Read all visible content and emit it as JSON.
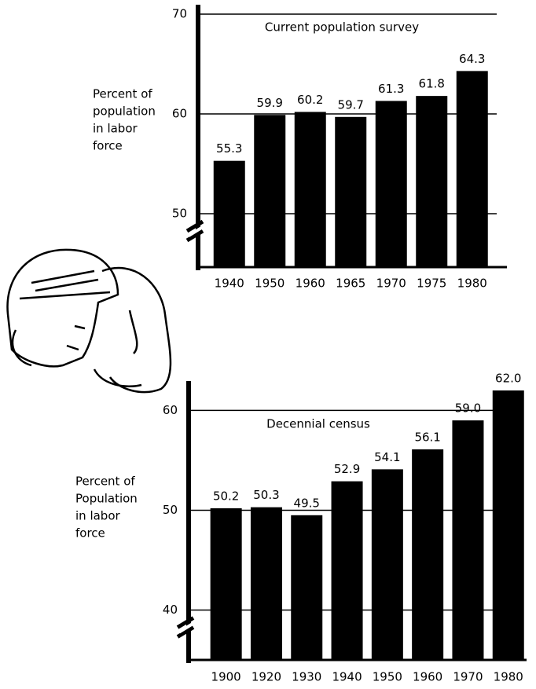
{
  "chart_data": [
    {
      "type": "bar",
      "title": "Current population survey",
      "ylabel_lines": [
        "Percent of",
        "population",
        "in labor",
        "force"
      ],
      "categories": [
        "1940",
        "1950",
        "1960",
        "1965",
        "1970",
        "1975",
        "1980"
      ],
      "values": [
        55.3,
        59.9,
        60.2,
        59.7,
        61.3,
        61.8,
        64.3
      ],
      "value_labels": [
        "55.3",
        "59.9",
        "60.2",
        "59.7",
        "61.3",
        "61.8",
        "64.3"
      ],
      "color": "#000000",
      "ylim": [
        45,
        70
      ],
      "yticks": [
        50,
        60,
        70
      ],
      "grid": true
    },
    {
      "type": "bar",
      "title": "Decennial census",
      "ylabel_lines": [
        "Percent of",
        "Population",
        "in labor",
        "force"
      ],
      "categories": [
        "1900",
        "1920",
        "1930",
        "1940",
        "1950",
        "1960",
        "1970",
        "1980"
      ],
      "values": [
        50.2,
        50.3,
        49.5,
        52.9,
        54.1,
        56.1,
        59.0,
        62.0
      ],
      "value_labels": [
        "50.2",
        "50.3",
        "49.5",
        "52.9",
        "54.1",
        "56.1",
        "59.0",
        "62.0"
      ],
      "color": "#000000",
      "ylim": [
        35,
        62
      ],
      "yticks": [
        40,
        50,
        60
      ],
      "grid": true
    }
  ]
}
